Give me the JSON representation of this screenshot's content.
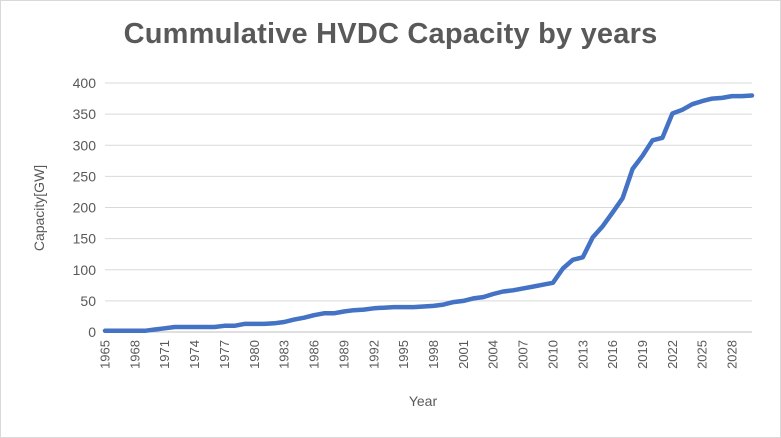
{
  "chart_data": {
    "type": "line",
    "title": "Cummulative HVDC Capacity by years",
    "xlabel": "Year",
    "ylabel": "Capacity[GW]",
    "ylim": [
      0,
      400
    ],
    "yticks": [
      0,
      50,
      100,
      150,
      200,
      250,
      300,
      350,
      400
    ],
    "xtick_labels": [
      "1965",
      "1968",
      "1971",
      "1974",
      "1977",
      "1980",
      "1983",
      "1986",
      "1989",
      "1992",
      "1995",
      "1998",
      "2001",
      "2004",
      "2007",
      "2010",
      "2013",
      "2016",
      "2019",
      "2022",
      "2025",
      "2028"
    ],
    "grid": "horizontal",
    "legend": "none",
    "line_color": "#4472c4",
    "x": [
      1965,
      1966,
      1967,
      1968,
      1969,
      1970,
      1971,
      1972,
      1973,
      1974,
      1975,
      1976,
      1977,
      1978,
      1979,
      1980,
      1981,
      1982,
      1983,
      1984,
      1985,
      1986,
      1987,
      1988,
      1989,
      1990,
      1991,
      1992,
      1993,
      1994,
      1995,
      1996,
      1997,
      1998,
      1999,
      2000,
      2001,
      2002,
      2003,
      2004,
      2005,
      2006,
      2007,
      2008,
      2009,
      2010,
      2011,
      2012,
      2013,
      2014,
      2015,
      2016,
      2017,
      2018,
      2019,
      2020,
      2021,
      2022,
      2023,
      2024,
      2025,
      2026,
      2027,
      2028,
      2029,
      2030
    ],
    "values": [
      2,
      2,
      2,
      2,
      2,
      4,
      6,
      8,
      8,
      8,
      8,
      8,
      10,
      10,
      13,
      13,
      13,
      14,
      16,
      20,
      23,
      27,
      30,
      30,
      33,
      35,
      36,
      38,
      39,
      40,
      40,
      40,
      41,
      42,
      44,
      48,
      50,
      54,
      56,
      61,
      65,
      67,
      70,
      73,
      76,
      79,
      102,
      116,
      120,
      152,
      170,
      192,
      215,
      262,
      283,
      308,
      312,
      351,
      357,
      366,
      371,
      375,
      376,
      379,
      379,
      380
    ]
  }
}
